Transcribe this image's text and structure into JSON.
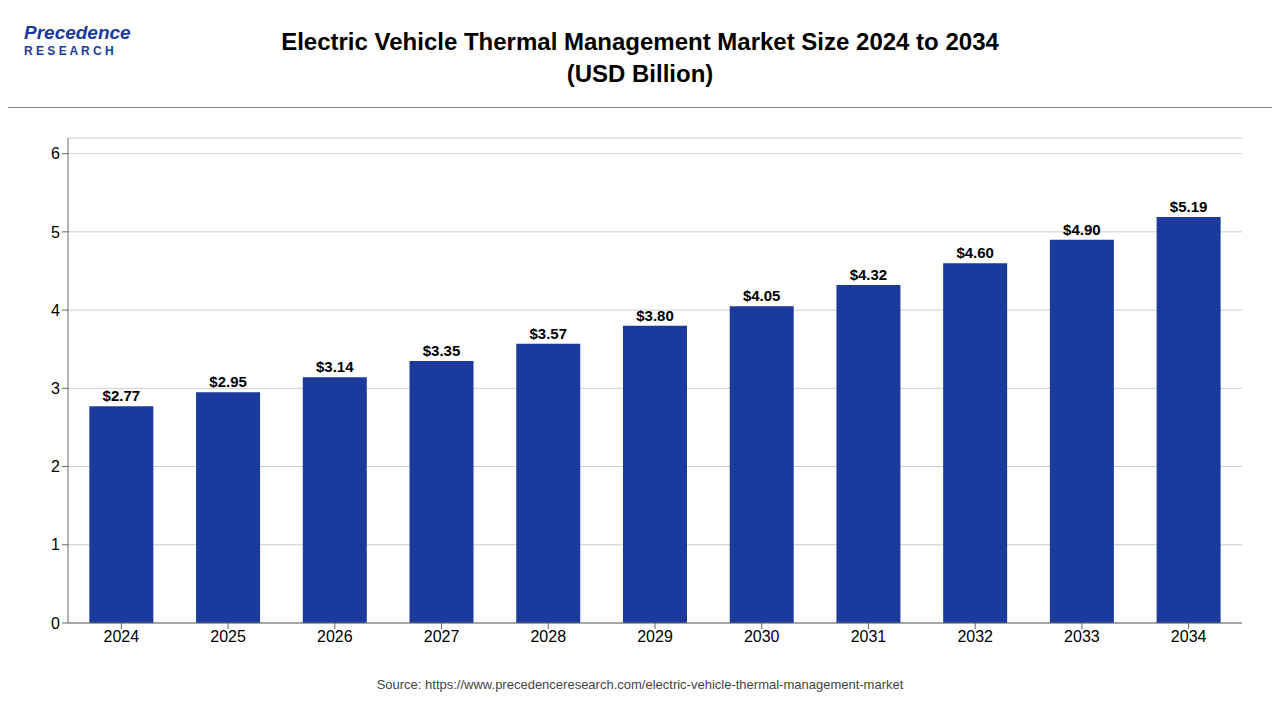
{
  "chart_data": {
    "type": "bar",
    "title": "Electric Vehicle Thermal Management Market Size 2024 to 2034\n(USD Billion)",
    "categories": [
      "2024",
      "2025",
      "2026",
      "2027",
      "2028",
      "2029",
      "2030",
      "2031",
      "2032",
      "2033",
      "2034"
    ],
    "values": [
      2.77,
      2.95,
      3.14,
      3.35,
      3.57,
      3.8,
      4.05,
      4.32,
      4.6,
      4.9,
      5.19
    ],
    "value_labels": [
      "$2.77",
      "$2.95",
      "$3.14",
      "$3.35",
      "$3.57",
      "$3.80",
      "$4.05",
      "$4.32",
      "$4.60",
      "$4.90",
      "$5.19"
    ],
    "data_labels": true,
    "color": "#1a3a9c",
    "ylim": [
      0,
      6.2
    ],
    "yticks": [
      0,
      1,
      2,
      3,
      4,
      5,
      6
    ],
    "grid": true,
    "annotations": [
      "Source: https://www.precedenceresearch.com/electric-vehicle-thermal-management-market",
      "Precedence",
      "R E S E A R C H"
    ]
  }
}
